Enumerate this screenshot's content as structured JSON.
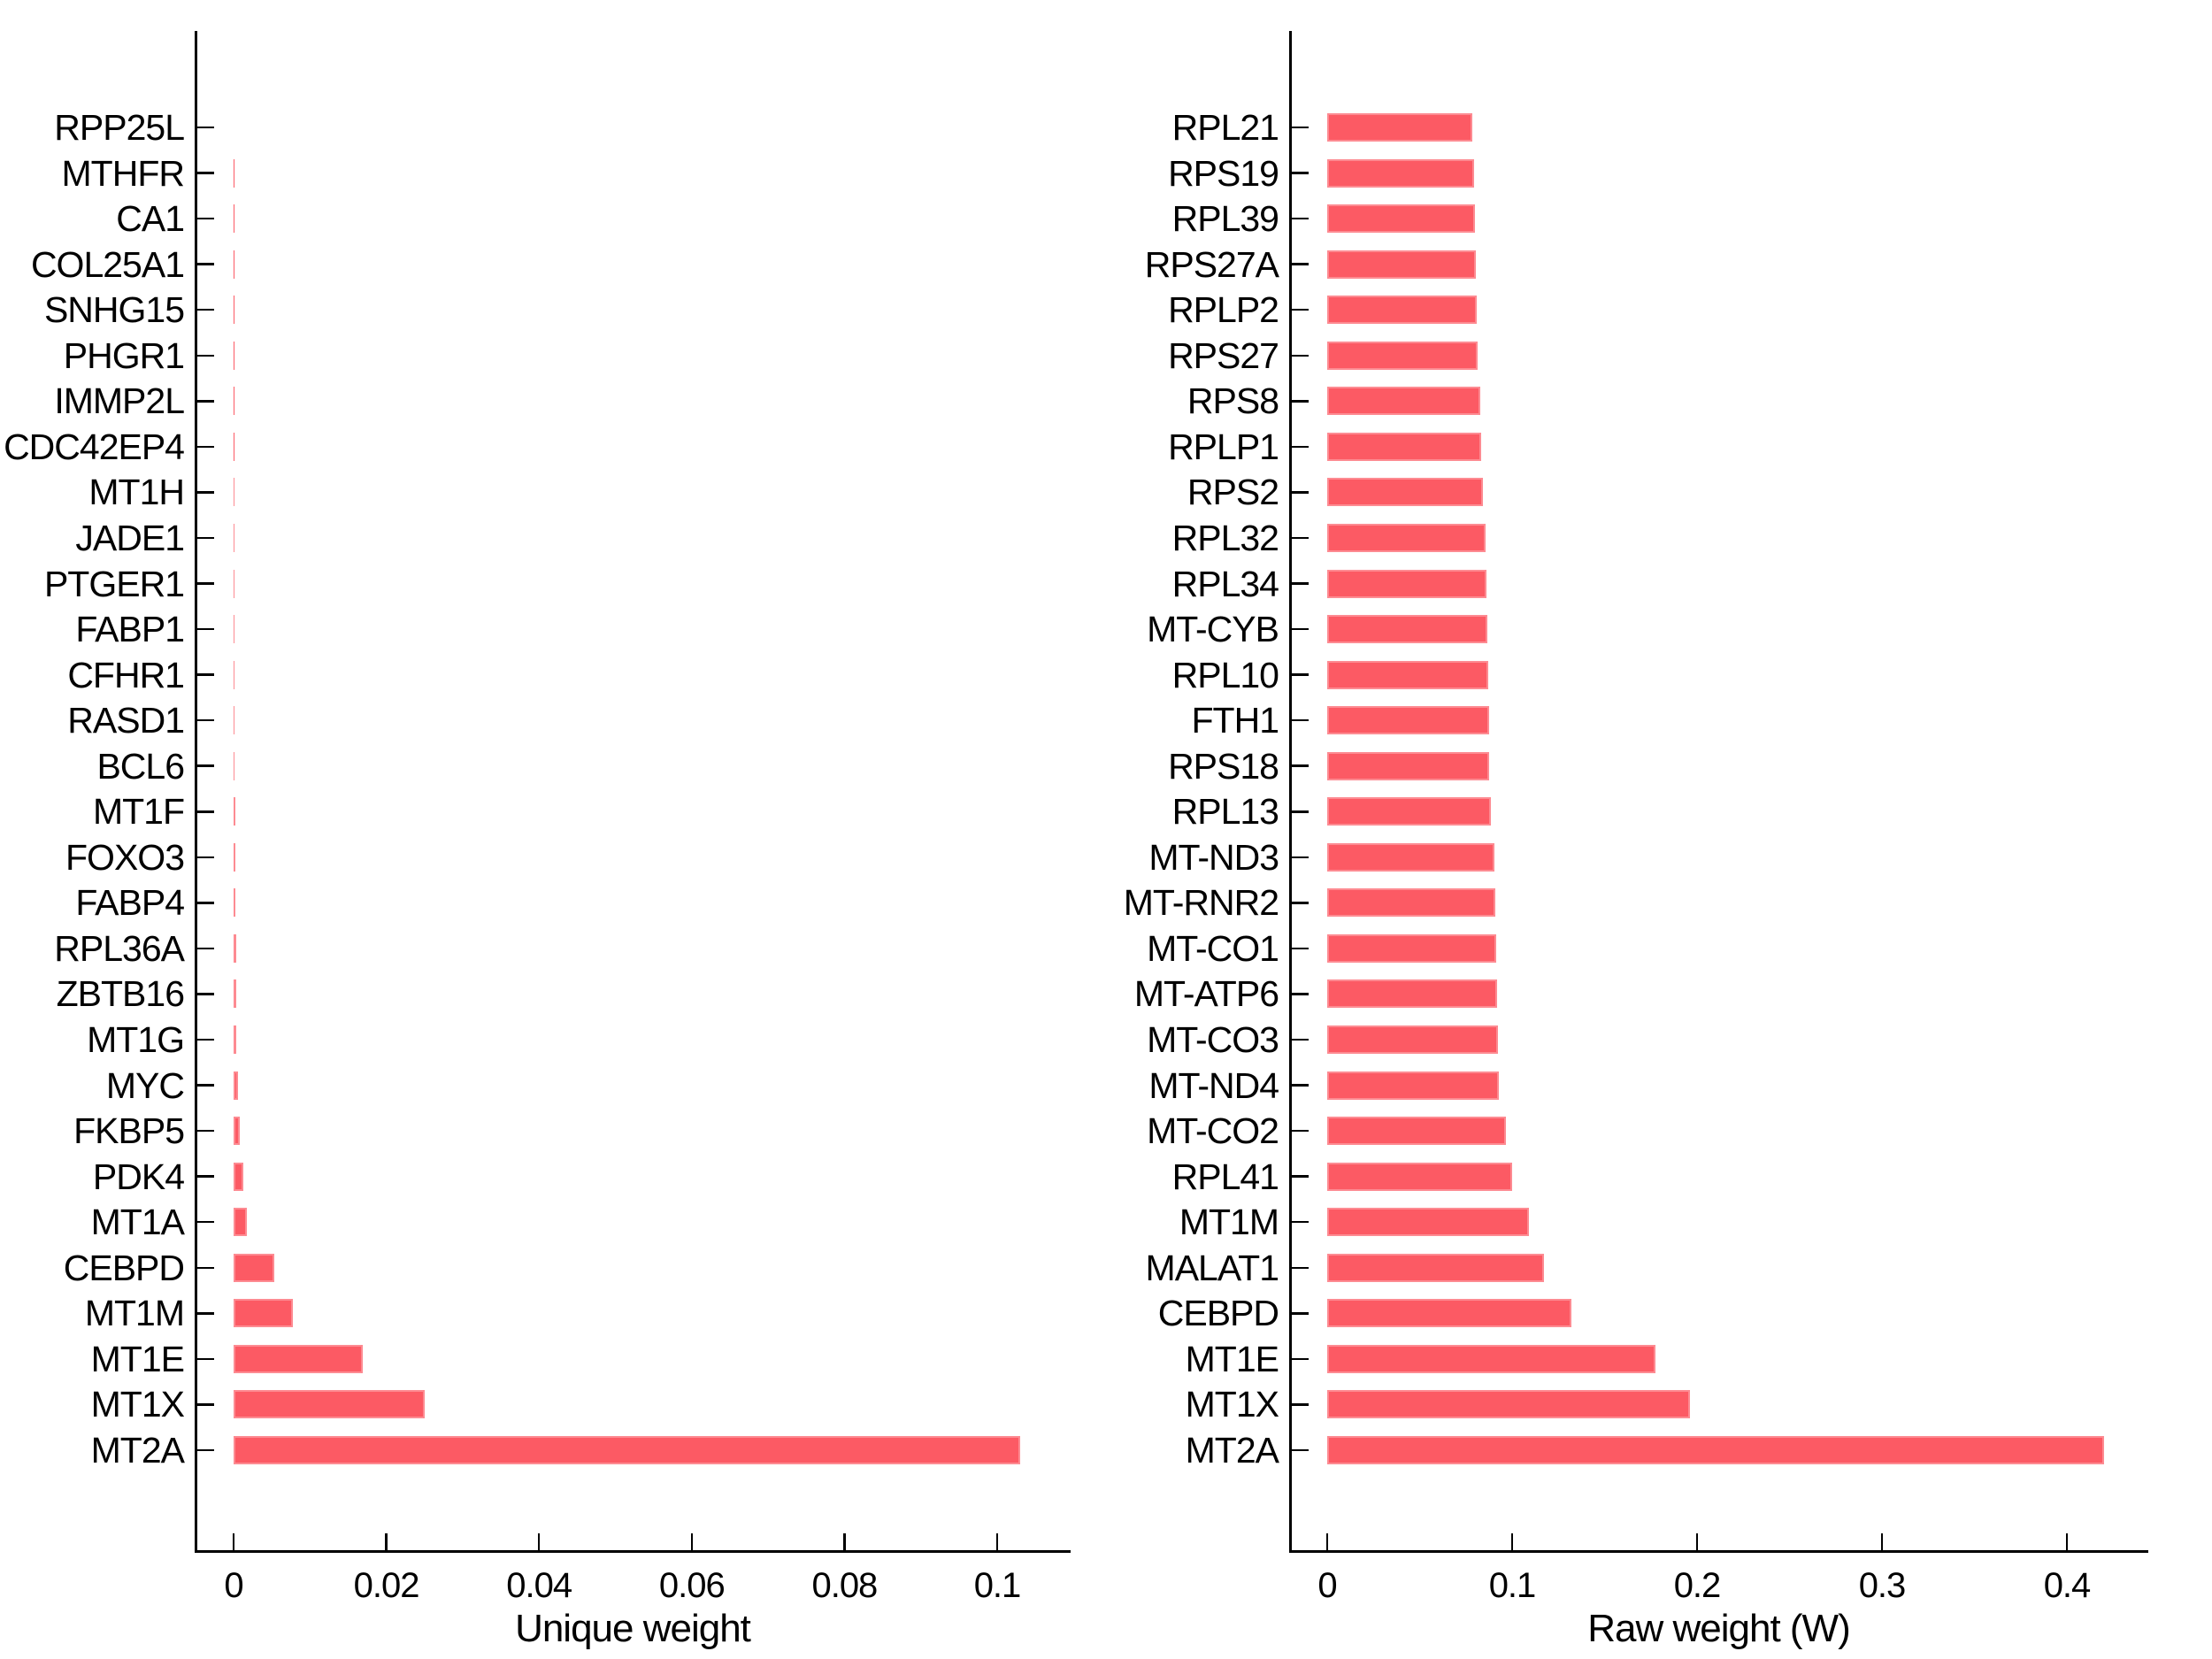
{
  "figure": {
    "background_color": "#ffffff",
    "text_color": "#000000",
    "bar_color": "#FC5A64"
  },
  "chart_data": [
    {
      "id": "unique-weight",
      "type": "bar",
      "orientation": "horizontal",
      "xlabel": "Unique weight",
      "legend": "none",
      "grid": "off",
      "xlim": [
        0,
        0.11
      ],
      "xticks": [
        0,
        0.02,
        0.04,
        0.06,
        0.08,
        0.1
      ],
      "xtick_labels": [
        "0",
        "0.02",
        "0.04",
        "0.06",
        "0.08",
        "0.1"
      ],
      "bar_color": "#FC5A64",
      "categories": [
        "RPP25L",
        "MTHFR",
        "CA1",
        "COL25A1",
        "SNHG15",
        "PHGR1",
        "IMMP2L",
        "CDC42EP4",
        "MT1H",
        "JADE1",
        "PTGER1",
        "FABP1",
        "CFHR1",
        "RASD1",
        "BCL6",
        "MT1F",
        "FOXO3",
        "FABP4",
        "RPL36A",
        "ZBTB16",
        "MT1G",
        "MYC",
        "FKBP5",
        "PDK4",
        "MT1A",
        "CEBPD",
        "MT1M",
        "MT1E",
        "MT1X",
        "MT2A"
      ],
      "values": [
        5e-06,
        1e-05,
        1.5e-05,
        2e-05,
        2.5e-05,
        3e-05,
        4e-05,
        5e-05,
        6e-05,
        7e-05,
        8e-05,
        9e-05,
        0.0001,
        0.00012,
        0.00015,
        0.00018,
        0.0002,
        0.00025,
        0.0003,
        0.00035,
        0.0004,
        0.00055,
        0.0008,
        0.0013,
        0.0017,
        0.0053,
        0.0078,
        0.0169,
        0.025,
        0.103
      ]
    },
    {
      "id": "raw-weight",
      "type": "bar",
      "orientation": "horizontal",
      "xlabel": "Raw weight (W)",
      "legend": "none",
      "grid": "off",
      "xlim": [
        0,
        0.46
      ],
      "xticks": [
        0,
        0.1,
        0.2,
        0.3,
        0.4
      ],
      "xtick_labels": [
        "0",
        "0.1",
        "0.2",
        "0.3",
        "0.4"
      ],
      "bar_color": "#FC5A64",
      "categories": [
        "RPL21",
        "RPS19",
        "RPL39",
        "RPS27A",
        "RPLP2",
        "RPS27",
        "RPS8",
        "RPLP1",
        "RPS2",
        "RPL32",
        "RPL34",
        "MT-CYB",
        "RPL10",
        "FTH1",
        "RPS18",
        "RPL13",
        "MT-ND3",
        "MT-RNR2",
        "MT-CO1",
        "MT-ATP6",
        "MT-CO3",
        "MT-ND4",
        "MT-CO2",
        "RPL41",
        "MT1M",
        "MALAT1",
        "CEBPD",
        "MT1E",
        "MT1X",
        "MT2A"
      ],
      "values": [
        0.0785,
        0.0795,
        0.08,
        0.0804,
        0.0808,
        0.0813,
        0.0826,
        0.0832,
        0.0842,
        0.0855,
        0.0861,
        0.0866,
        0.087,
        0.0874,
        0.0877,
        0.0886,
        0.0903,
        0.0908,
        0.0916,
        0.092,
        0.0923,
        0.0929,
        0.0966,
        0.1,
        0.109,
        0.1172,
        0.132,
        0.1775,
        0.1962,
        0.42
      ]
    }
  ]
}
